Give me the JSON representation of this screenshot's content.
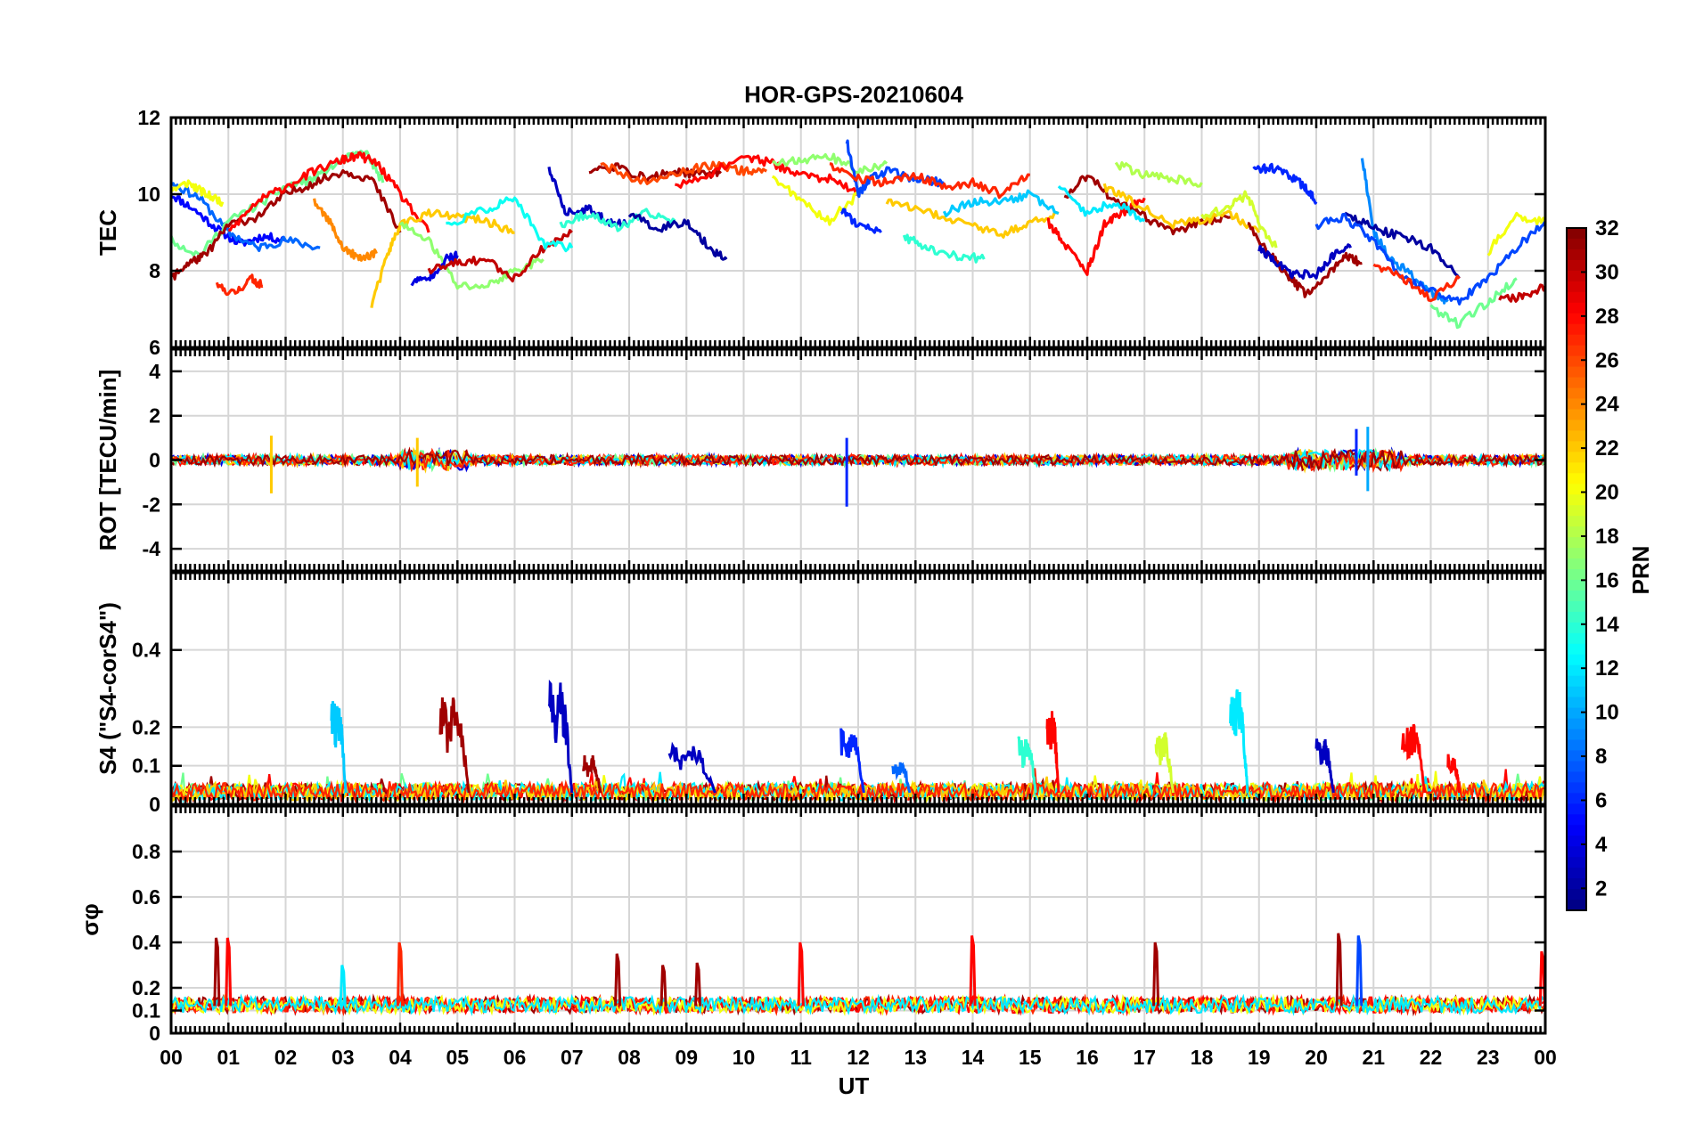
{
  "chart_data": [
    {
      "type": "line",
      "title": "HOR-GPS-20210604",
      "ylabel": "TEC",
      "ylim": [
        6,
        12
      ],
      "yticks": [
        "6",
        "8",
        "10",
        "12"
      ],
      "xlim": [
        0,
        24
      ],
      "series": [
        {
          "prn": 5,
          "x": [
            0,
            0.4,
            0.8,
            1.2,
            1.6,
            2.0
          ],
          "y": [
            10.0,
            9.6,
            9.1,
            8.7,
            8.9,
            8.8
          ]
        },
        {
          "prn": 8,
          "x": [
            0,
            0.5,
            1.0,
            1.5,
            2.0,
            2.6
          ],
          "y": [
            10.3,
            9.9,
            9.0,
            8.6,
            8.8,
            8.6
          ]
        },
        {
          "prn": 20,
          "x": [
            0,
            0.3,
            0.6,
            0.9
          ],
          "y": [
            10.1,
            10.3,
            10.0,
            9.8
          ]
        },
        {
          "prn": 16,
          "x": [
            0,
            0.5,
            1.0,
            1.5,
            2.0,
            2.5,
            3.0,
            3.4,
            3.7
          ],
          "y": [
            8.8,
            8.4,
            9.3,
            9.7,
            10.2,
            10.4,
            10.9,
            11.1,
            10.3
          ]
        },
        {
          "prn": 27,
          "x": [
            0.8,
            1.1,
            1.4,
            1.6
          ],
          "y": [
            7.6,
            7.4,
            7.8,
            7.6
          ]
        },
        {
          "prn": 31,
          "x": [
            0,
            0.3,
            0.6,
            1.0,
            1.5,
            2.0,
            2.5,
            3.0,
            3.5,
            4.0
          ],
          "y": [
            7.8,
            8.2,
            8.4,
            9.2,
            9.4,
            10.0,
            10.3,
            10.6,
            10.4,
            9.0
          ]
        },
        {
          "prn": 28,
          "x": [
            1.0,
            1.5,
            2.0,
            2.5,
            3.0,
            3.3,
            3.6,
            4.0,
            4.5
          ],
          "y": [
            9.0,
            9.8,
            10.2,
            10.6,
            10.9,
            11.0,
            10.8,
            10.0,
            9.0
          ]
        },
        {
          "prn": 24,
          "x": [
            2.5,
            2.8,
            3.0,
            3.3,
            3.6
          ],
          "y": [
            9.8,
            9.2,
            8.6,
            8.3,
            8.5
          ]
        },
        {
          "prn": 22,
          "x": [
            3.5,
            3.8,
            4.0,
            4.5,
            5.0,
            5.5,
            6.0
          ],
          "y": [
            7.1,
            8.5,
            9.2,
            9.5,
            9.4,
            9.3,
            9.0
          ]
        },
        {
          "prn": 17,
          "x": [
            4.0,
            4.5,
            5.0,
            5.5,
            6.0,
            6.5
          ],
          "y": [
            9.2,
            8.8,
            7.6,
            7.6,
            8.0,
            8.3
          ]
        },
        {
          "prn": 4,
          "x": [
            4.2,
            4.5,
            4.8,
            5.0
          ],
          "y": [
            7.7,
            7.8,
            8.3,
            8.4
          ]
        },
        {
          "prn": 30,
          "x": [
            4.5,
            5.0,
            5.5,
            6.0,
            6.5,
            7.0
          ],
          "y": [
            8.0,
            8.2,
            8.3,
            7.8,
            8.6,
            9.0
          ]
        },
        {
          "prn": 13,
          "x": [
            4.8,
            5.5,
            6.0,
            6.5,
            7.0
          ],
          "y": [
            9.2,
            9.6,
            9.9,
            8.7,
            8.6
          ]
        },
        {
          "prn": 3,
          "x": [
            6.6,
            6.9,
            7.3,
            7.6,
            8.0
          ],
          "y": [
            10.7,
            9.5,
            9.6,
            9.3,
            9.2
          ]
        },
        {
          "prn": 14,
          "x": [
            6.8,
            7.3,
            7.8,
            8.3,
            8.8
          ],
          "y": [
            9.2,
            9.5,
            9.1,
            9.5,
            9.3
          ]
        },
        {
          "prn": 2,
          "x": [
            8.0,
            8.5,
            9.0,
            9.4,
            9.7
          ],
          "y": [
            9.5,
            9.1,
            9.3,
            8.6,
            8.3
          ]
        },
        {
          "prn": 31,
          "x": [
            7.3,
            7.8,
            8.3,
            8.8,
            9.3,
            9.6
          ],
          "y": [
            10.6,
            10.7,
            10.4,
            10.6,
            10.5,
            10.6
          ]
        },
        {
          "prn": 26,
          "x": [
            7.5,
            8.2,
            9.0,
            9.5,
            10.0,
            10.4
          ],
          "y": [
            10.8,
            10.3,
            10.6,
            10.8,
            10.6,
            10.6
          ]
        },
        {
          "prn": 28,
          "x": [
            8.8,
            9.5,
            10.0,
            10.5,
            11.0,
            11.5,
            12.0
          ],
          "y": [
            10.2,
            10.6,
            11.0,
            10.8,
            10.5,
            10.4,
            10.0
          ]
        },
        {
          "prn": 20,
          "x": [
            10.5,
            11.0,
            11.5,
            12.0
          ],
          "y": [
            10.5,
            9.8,
            9.3,
            10.0
          ]
        },
        {
          "prn": 17,
          "x": [
            10.5,
            11.0,
            11.5,
            12.0,
            12.5
          ],
          "y": [
            10.8,
            10.9,
            11.0,
            10.6,
            10.8
          ]
        },
        {
          "prn": 7,
          "x": [
            11.8,
            12.0,
            12.2,
            12.5,
            13.0,
            13.5
          ],
          "y": [
            11.4,
            10.0,
            10.4,
            10.6,
            10.4,
            10.3
          ]
        },
        {
          "prn": 6,
          "x": [
            11.7,
            12.0,
            12.4
          ],
          "y": [
            9.6,
            9.2,
            9.0
          ]
        },
        {
          "prn": 27,
          "x": [
            11.5,
            12.0,
            12.5,
            13.0,
            13.5,
            14.0,
            14.5,
            15.0
          ],
          "y": [
            10.7,
            10.4,
            10.3,
            10.5,
            10.2,
            10.3,
            10.0,
            10.5
          ]
        },
        {
          "prn": 14,
          "x": [
            12.8,
            13.2,
            13.7,
            14.2
          ],
          "y": [
            8.9,
            8.6,
            8.4,
            8.3
          ]
        },
        {
          "prn": 22,
          "x": [
            12.5,
            13.0,
            13.5,
            14.0,
            14.5,
            15.0,
            15.5
          ],
          "y": [
            9.8,
            9.6,
            9.4,
            9.2,
            8.9,
            9.3,
            9.5
          ]
        },
        {
          "prn": 11,
          "x": [
            13.5,
            14.0,
            14.5,
            15.0,
            15.5
          ],
          "y": [
            9.5,
            9.8,
            9.8,
            10.0,
            9.5
          ]
        },
        {
          "prn": 28,
          "x": [
            15.3,
            15.6,
            16.0,
            16.3,
            16.6,
            17.0
          ],
          "y": [
            9.3,
            8.7,
            8.0,
            9.2,
            9.5,
            9.9
          ]
        },
        {
          "prn": 31,
          "x": [
            15.6,
            16.0,
            16.5,
            17.0,
            17.5,
            18.0,
            18.5
          ],
          "y": [
            9.9,
            10.5,
            9.8,
            9.4,
            9.0,
            9.3,
            9.4
          ]
        },
        {
          "prn": 18,
          "x": [
            16.5,
            17.0,
            17.5,
            18.0
          ],
          "y": [
            10.8,
            10.5,
            10.4,
            10.3
          ]
        },
        {
          "prn": 22,
          "x": [
            16.3,
            16.8,
            17.5,
            18.0,
            18.5,
            19.0
          ],
          "y": [
            10.2,
            9.8,
            9.2,
            9.3,
            9.5,
            9.0
          ]
        },
        {
          "prn": 12,
          "x": [
            15.5,
            16.0,
            16.5,
            17.0
          ],
          "y": [
            10.2,
            9.5,
            9.8,
            9.3
          ]
        },
        {
          "prn": 19,
          "x": [
            18.0,
            18.5,
            18.8,
            19.0,
            19.3
          ],
          "y": [
            9.4,
            9.7,
            10.0,
            9.2,
            8.6
          ]
        },
        {
          "prn": 6,
          "x": [
            18.9,
            19.2,
            19.5,
            19.8,
            20.0
          ],
          "y": [
            10.6,
            10.7,
            10.5,
            10.2,
            9.8
          ]
        },
        {
          "prn": 31,
          "x": [
            18.8,
            19.2,
            19.5,
            19.8,
            20.2,
            20.5,
            20.8
          ],
          "y": [
            9.2,
            8.4,
            7.9,
            7.4,
            7.9,
            8.4,
            8.2
          ]
        },
        {
          "prn": 3,
          "x": [
            19.0,
            19.3,
            19.6,
            20.0,
            20.3,
            20.6
          ],
          "y": [
            8.6,
            8.2,
            7.9,
            7.9,
            8.4,
            8.6
          ]
        },
        {
          "prn": 9,
          "x": [
            20.8,
            21.0,
            21.3,
            21.6,
            22.0,
            22.3
          ],
          "y": [
            11.0,
            9.0,
            8.3,
            8.0,
            7.4,
            7.2
          ]
        },
        {
          "prn": 2,
          "x": [
            20.5,
            21.0,
            21.5,
            22.0,
            22.5
          ],
          "y": [
            9.5,
            9.1,
            8.9,
            8.6,
            7.8
          ]
        },
        {
          "prn": 7,
          "x": [
            20.0,
            20.5,
            21.0,
            21.5,
            22.0,
            22.5,
            23.0,
            23.5,
            24.0
          ],
          "y": [
            9.2,
            9.4,
            8.8,
            7.8,
            7.5,
            7.2,
            7.8,
            8.6,
            9.3
          ]
        },
        {
          "prn": 27,
          "x": [
            21.0,
            21.5,
            22.0,
            22.5
          ],
          "y": [
            8.2,
            7.8,
            7.3,
            7.8
          ]
        },
        {
          "prn": 16,
          "x": [
            22.0,
            22.5,
            23.0,
            23.5
          ],
          "y": [
            7.0,
            6.6,
            7.2,
            7.8
          ]
        },
        {
          "prn": 20,
          "x": [
            23.0,
            23.5,
            24.0
          ],
          "y": [
            8.5,
            9.4,
            9.3
          ]
        },
        {
          "prn": 30,
          "x": [
            23.2,
            23.6,
            24.0
          ],
          "y": [
            7.3,
            7.3,
            7.6
          ]
        }
      ]
    },
    {
      "type": "line",
      "ylabel": "ROT [TECU/min]",
      "ylim": [
        -5,
        5
      ],
      "yticks": [
        "-4",
        "-2",
        "0",
        "2",
        "4"
      ],
      "xlim": [
        0,
        24
      ],
      "note_spikes": [
        {
          "prn": 22,
          "x": 1.75,
          "y": [
            -1.5,
            1.1
          ]
        },
        {
          "prn": 22,
          "x": 4.3,
          "y": [
            -1.2,
            1.0
          ]
        },
        {
          "prn": 6,
          "x": 11.8,
          "y": [
            -2.1,
            1.0
          ]
        },
        {
          "prn": 6,
          "x": 20.7,
          "y": [
            -0.7,
            1.4
          ]
        },
        {
          "prn": 10,
          "x": 20.9,
          "y": [
            -1.4,
            1.5
          ]
        }
      ]
    },
    {
      "type": "line",
      "ylabel": "S4 (\"S4-corS4\")",
      "ylim": [
        0,
        0.6
      ],
      "yticks": [
        "0",
        "0.1",
        "0.2",
        "0.4"
      ],
      "xlim": [
        0,
        24
      ],
      "bursts": [
        {
          "prn": 11,
          "x0": 2.8,
          "x1": 3.05,
          "peak": 0.27
        },
        {
          "prn": 31,
          "x0": 4.7,
          "x1": 5.2,
          "peak": 0.29
        },
        {
          "prn": 3,
          "x0": 6.6,
          "x1": 7.0,
          "peak": 0.32
        },
        {
          "prn": 31,
          "x0": 7.2,
          "x1": 7.5,
          "peak": 0.13
        },
        {
          "prn": 3,
          "x0": 8.7,
          "x1": 9.5,
          "peak": 0.16
        },
        {
          "prn": 6,
          "x0": 11.7,
          "x1": 12.1,
          "peak": 0.2
        },
        {
          "prn": 8,
          "x0": 12.6,
          "x1": 12.9,
          "peak": 0.11
        },
        {
          "prn": 14,
          "x0": 14.8,
          "x1": 15.1,
          "peak": 0.18
        },
        {
          "prn": 28,
          "x0": 15.3,
          "x1": 15.5,
          "peak": 0.25
        },
        {
          "prn": 19,
          "x0": 17.2,
          "x1": 17.5,
          "peak": 0.19
        },
        {
          "prn": 12,
          "x0": 18.5,
          "x1": 18.8,
          "peak": 0.32
        },
        {
          "prn": 3,
          "x0": 20.0,
          "x1": 20.3,
          "peak": 0.17
        },
        {
          "prn": 28,
          "x0": 21.5,
          "x1": 21.9,
          "peak": 0.21
        },
        {
          "prn": 28,
          "x0": 22.3,
          "x1": 22.5,
          "peak": 0.13
        }
      ]
    },
    {
      "type": "line",
      "ylabel": "σφ",
      "ylim": [
        0,
        1
      ],
      "yticks": [
        "0",
        "0.1",
        "0.2",
        "0.4",
        "0.6",
        "0.8"
      ],
      "xlim": [
        0,
        24
      ],
      "spikes": [
        {
          "prn": 31,
          "x": 0.8,
          "y": 0.42
        },
        {
          "prn": 28,
          "x": 1.0,
          "y": 0.42
        },
        {
          "prn": 12,
          "x": 3.0,
          "y": 0.3
        },
        {
          "prn": 27,
          "x": 4.0,
          "y": 0.4
        },
        {
          "prn": 31,
          "x": 7.8,
          "y": 0.35
        },
        {
          "prn": 31,
          "x": 8.6,
          "y": 0.3
        },
        {
          "prn": 31,
          "x": 9.2,
          "y": 0.31
        },
        {
          "prn": 28,
          "x": 11.0,
          "y": 0.4
        },
        {
          "prn": 28,
          "x": 14.0,
          "y": 0.43
        },
        {
          "prn": 31,
          "x": 17.2,
          "y": 0.4
        },
        {
          "prn": 31,
          "x": 20.4,
          "y": 0.44
        },
        {
          "prn": 7,
          "x": 20.75,
          "y": 0.43
        },
        {
          "prn": 28,
          "x": 23.95,
          "y": 0.36
        }
      ]
    }
  ],
  "xaxis": {
    "label": "UT",
    "ticks": [
      "00",
      "01",
      "02",
      "03",
      "04",
      "05",
      "06",
      "07",
      "08",
      "09",
      "10",
      "11",
      "12",
      "13",
      "14",
      "15",
      "16",
      "17",
      "18",
      "19",
      "20",
      "21",
      "22",
      "23",
      "00"
    ]
  },
  "colorbar": {
    "label": "PRN",
    "range": [
      1,
      32
    ],
    "colormap": "jet",
    "ticks": [
      "2",
      "4",
      "6",
      "8",
      "10",
      "12",
      "14",
      "16",
      "18",
      "20",
      "22",
      "24",
      "26",
      "28",
      "30",
      "32"
    ]
  }
}
